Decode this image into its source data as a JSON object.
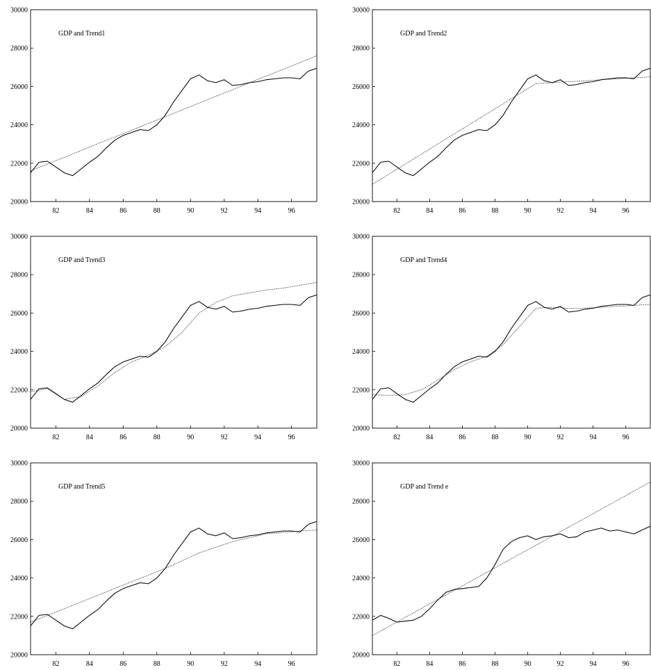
{
  "chart_data": [
    {
      "type": "line",
      "title": "GDP and Trend1",
      "xlabel": "",
      "ylabel": "",
      "xlim": [
        80.5,
        97.5
      ],
      "ylim": [
        20000,
        30000
      ],
      "x_ticks": [
        "82",
        "84",
        "86",
        "88",
        "90",
        "92",
        "94",
        "96"
      ],
      "y_ticks": [
        "20000",
        "22000",
        "24000",
        "26000",
        "28000",
        "30000"
      ],
      "grid": false,
      "series": [
        {
          "style": "solid",
          "x": [
            80.5,
            81,
            81.5,
            82,
            82.5,
            83,
            83.5,
            84,
            84.5,
            85,
            85.5,
            86,
            86.5,
            87,
            87.5,
            88,
            88.5,
            89,
            89.5,
            90,
            90.5,
            91,
            91.5,
            92,
            92.5,
            93,
            93.5,
            94,
            94.5,
            95,
            95.5,
            96,
            96.5,
            97,
            97.5
          ],
          "y": [
            21500,
            22050,
            22100,
            21800,
            21500,
            21350,
            21700,
            22050,
            22350,
            22800,
            23200,
            23450,
            23600,
            23750,
            23700,
            24000,
            24500,
            25200,
            25800,
            26400,
            26600,
            26300,
            26200,
            26350,
            26050,
            26100,
            26200,
            26250,
            26350,
            26400,
            26450,
            26450,
            26400,
            26800,
            26950
          ]
        },
        {
          "style": "dotted",
          "x": [
            80.5,
            97.5
          ],
          "y": [
            21600,
            27600
          ]
        }
      ]
    },
    {
      "type": "line",
      "title": "GDP and Trend2",
      "xlabel": "",
      "ylabel": "",
      "xlim": [
        80.5,
        97.5
      ],
      "ylim": [
        20000,
        30000
      ],
      "x_ticks": [
        "82",
        "84",
        "86",
        "88",
        "90",
        "92",
        "94",
        "96"
      ],
      "y_ticks": [
        "20000",
        "22000",
        "24000",
        "26000",
        "28000",
        "30000"
      ],
      "grid": false,
      "series": [
        {
          "style": "solid",
          "x": [
            80.5,
            81,
            81.5,
            82,
            82.5,
            83,
            83.5,
            84,
            84.5,
            85,
            85.5,
            86,
            86.5,
            87,
            87.5,
            88,
            88.5,
            89,
            89.5,
            90,
            90.5,
            91,
            91.5,
            92,
            92.5,
            93,
            93.5,
            94,
            94.5,
            95,
            95.5,
            96,
            96.5,
            97,
            97.5
          ],
          "y": [
            21500,
            22050,
            22100,
            21800,
            21500,
            21350,
            21700,
            22050,
            22350,
            22800,
            23200,
            23450,
            23600,
            23750,
            23700,
            24000,
            24500,
            25200,
            25800,
            26400,
            26600,
            26300,
            26200,
            26350,
            26050,
            26100,
            26200,
            26250,
            26350,
            26400,
            26450,
            26450,
            26400,
            26800,
            26950
          ]
        },
        {
          "style": "dotted",
          "x": [
            80.5,
            90.5
          ],
          "y": [
            20900,
            26150
          ]
        },
        {
          "style": "dotted",
          "x": [
            90.5,
            97.5
          ],
          "y": [
            26150,
            26500
          ]
        }
      ]
    },
    {
      "type": "line",
      "title": "GDP and Trend3",
      "xlabel": "",
      "ylabel": "",
      "xlim": [
        80.5,
        97.5
      ],
      "ylim": [
        20000,
        30000
      ],
      "x_ticks": [
        "82",
        "84",
        "86",
        "88",
        "90",
        "92",
        "94",
        "96"
      ],
      "y_ticks": [
        "20000",
        "22000",
        "24000",
        "26000",
        "28000",
        "30000"
      ],
      "grid": false,
      "series": [
        {
          "style": "solid",
          "x": [
            80.5,
            81,
            81.5,
            82,
            82.5,
            83,
            83.5,
            84,
            84.5,
            85,
            85.5,
            86,
            86.5,
            87,
            87.5,
            88,
            88.5,
            89,
            89.5,
            90,
            90.5,
            91,
            91.5,
            92,
            92.5,
            93,
            93.5,
            94,
            94.5,
            95,
            95.5,
            96,
            96.5,
            97,
            97.5
          ],
          "y": [
            21500,
            22050,
            22100,
            21800,
            21500,
            21350,
            21700,
            22050,
            22350,
            22800,
            23200,
            23450,
            23600,
            23750,
            23700,
            24000,
            24500,
            25200,
            25800,
            26400,
            26600,
            26300,
            26200,
            26350,
            26050,
            26100,
            26200,
            26250,
            26350,
            26400,
            26450,
            26450,
            26400,
            26800,
            26950
          ]
        },
        {
          "style": "dotted",
          "x": [
            80.5,
            81.5,
            82.5,
            83.5,
            84.5,
            85.5,
            86.5,
            87.5,
            88.5,
            89.5,
            90.5,
            91.5,
            92.5,
            93.5,
            94.5,
            95.5,
            96.5,
            97.5
          ],
          "y": [
            21900,
            22050,
            21500,
            21650,
            22200,
            22900,
            23450,
            23800,
            24250,
            25000,
            26000,
            26550,
            26900,
            27050,
            27200,
            27300,
            27450,
            27600
          ]
        }
      ]
    },
    {
      "type": "line",
      "title": "GDP and Trend4",
      "xlabel": "",
      "ylabel": "",
      "xlim": [
        80.5,
        97.5
      ],
      "ylim": [
        20000,
        30000
      ],
      "x_ticks": [
        "82",
        "84",
        "86",
        "88",
        "90",
        "92",
        "94",
        "96"
      ],
      "y_ticks": [
        "20000",
        "22000",
        "24000",
        "26000",
        "28000",
        "30000"
      ],
      "grid": false,
      "series": [
        {
          "style": "solid",
          "x": [
            80.5,
            81,
            81.5,
            82,
            82.5,
            83,
            83.5,
            84,
            84.5,
            85,
            85.5,
            86,
            86.5,
            87,
            87.5,
            88,
            88.5,
            89,
            89.5,
            90,
            90.5,
            91,
            91.5,
            92,
            92.5,
            93,
            93.5,
            94,
            94.5,
            95,
            95.5,
            96,
            96.5,
            97,
            97.5
          ],
          "y": [
            21500,
            22050,
            22100,
            21800,
            21500,
            21350,
            21700,
            22050,
            22350,
            22800,
            23200,
            23450,
            23600,
            23750,
            23700,
            24000,
            24500,
            25200,
            25800,
            26400,
            26600,
            26300,
            26200,
            26350,
            26050,
            26100,
            26200,
            26250,
            26350,
            26400,
            26450,
            26450,
            26400,
            26800,
            26950
          ]
        },
        {
          "style": "dotted",
          "x": [
            80.5,
            81.5,
            82.5,
            83.5,
            84.5,
            85.5,
            86.5,
            87.5,
            88.5,
            89.5,
            90.5,
            91.5,
            92.5,
            93.5,
            94.5,
            95.5,
            96.5,
            97.5
          ],
          "y": [
            21750,
            21700,
            21750,
            22000,
            22500,
            23050,
            23450,
            23750,
            24350,
            25300,
            26250,
            26300,
            26250,
            26250,
            26300,
            26350,
            26400,
            26450
          ]
        }
      ]
    },
    {
      "type": "line",
      "title": "GDP and Trend5",
      "xlabel": "",
      "ylabel": "",
      "xlim": [
        80.5,
        97.5
      ],
      "ylim": [
        20000,
        30000
      ],
      "x_ticks": [
        "82",
        "84",
        "86",
        "88",
        "90",
        "92",
        "94",
        "96"
      ],
      "y_ticks": [
        "20000",
        "22000",
        "24000",
        "26000",
        "28000",
        "30000"
      ],
      "grid": false,
      "series": [
        {
          "style": "solid",
          "x": [
            80.5,
            81,
            81.5,
            82,
            82.5,
            83,
            83.5,
            84,
            84.5,
            85,
            85.5,
            86,
            86.5,
            87,
            87.5,
            88,
            88.5,
            89,
            89.5,
            90,
            90.5,
            91,
            91.5,
            92,
            92.5,
            93,
            93.5,
            94,
            94.5,
            95,
            95.5,
            96,
            96.5,
            97,
            97.5
          ],
          "y": [
            21500,
            22050,
            22100,
            21800,
            21500,
            21350,
            21700,
            22050,
            22350,
            22800,
            23200,
            23450,
            23600,
            23750,
            23700,
            24000,
            24500,
            25200,
            25800,
            26400,
            26600,
            26300,
            26200,
            26350,
            26050,
            26100,
            26200,
            26250,
            26350,
            26400,
            26450,
            26450,
            26400,
            26800,
            26950
          ]
        },
        {
          "style": "dotted",
          "x": [
            80.5,
            82.5,
            84.5,
            86.5,
            88.5,
            90.5,
            92.5,
            94.5,
            96.5,
            97.5
          ],
          "y": [
            21700,
            22400,
            23100,
            23800,
            24500,
            25300,
            25900,
            26300,
            26450,
            26500
          ]
        }
      ]
    },
    {
      "type": "line",
      "title": "GDP and Trend e",
      "xlabel": "",
      "ylabel": "",
      "xlim": [
        80.5,
        97.5
      ],
      "ylim": [
        20000,
        30000
      ],
      "x_ticks": [
        "82",
        "84",
        "86",
        "88",
        "90",
        "92",
        "94",
        "96"
      ],
      "y_ticks": [
        "20000",
        "22000",
        "24000",
        "26000",
        "28000",
        "30000"
      ],
      "grid": false,
      "series": [
        {
          "style": "solid",
          "x": [
            80.5,
            81,
            81.5,
            82,
            82.5,
            83,
            83.5,
            84,
            84.5,
            85,
            85.5,
            86,
            86.5,
            87,
            87.5,
            88,
            88.5,
            89,
            89.5,
            90,
            90.5,
            91,
            91.5,
            92,
            92.5,
            93,
            93.5,
            94,
            94.5,
            95,
            95.5,
            96,
            96.5,
            97,
            97.5
          ],
          "y": [
            21800,
            22050,
            21900,
            21700,
            21750,
            21800,
            22000,
            22400,
            22850,
            23250,
            23400,
            23450,
            23500,
            23550,
            24000,
            24700,
            25500,
            25900,
            26100,
            26200,
            26000,
            26150,
            26200,
            26300,
            26100,
            26150,
            26400,
            26500,
            26600,
            26450,
            26500,
            26400,
            26300,
            26500,
            26700
          ]
        },
        {
          "style": "dotted",
          "x": [
            80.5,
            97.5
          ],
          "y": [
            21000,
            29000
          ]
        }
      ]
    }
  ]
}
